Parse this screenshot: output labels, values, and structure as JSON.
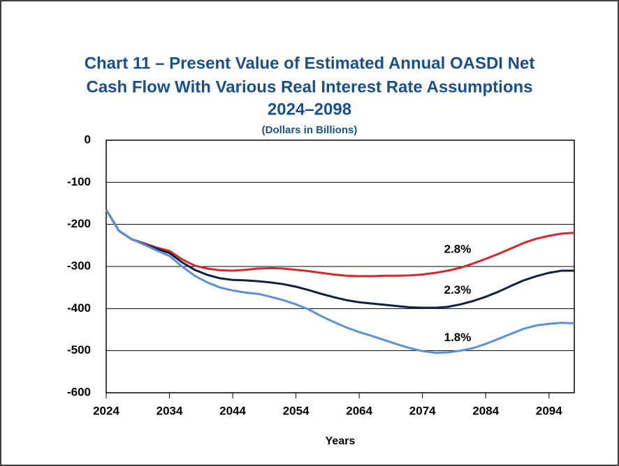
{
  "chart_data": {
    "type": "line",
    "title": [
      "Chart 11 – Present Value of Estimated Annual OASDI Net",
      "Cash Flow With Various Real Interest Rate Assumptions",
      "2024–2098"
    ],
    "subtitle": "(Dollars in Billions)",
    "x_label": "Years",
    "x": [
      2024,
      2026,
      2028,
      2030,
      2032,
      2034,
      2036,
      2038,
      2040,
      2042,
      2044,
      2046,
      2048,
      2050,
      2052,
      2054,
      2056,
      2058,
      2060,
      2062,
      2064,
      2066,
      2068,
      2070,
      2072,
      2074,
      2076,
      2078,
      2080,
      2082,
      2084,
      2086,
      2088,
      2090,
      2092,
      2094,
      2096,
      2098
    ],
    "series": [
      {
        "name": "2.8%",
        "color": "#d9262b",
        "values": [
          -165,
          -215,
          -235,
          -245,
          -255,
          -263,
          -283,
          -298,
          -305,
          -309,
          -310,
          -308,
          -305,
          -304,
          -305,
          -308,
          -311,
          -315,
          -319,
          -322,
          -323,
          -323,
          -322,
          -322,
          -321,
          -319,
          -315,
          -310,
          -303,
          -293,
          -282,
          -270,
          -257,
          -244,
          -234,
          -227,
          -222,
          -220
        ]
      },
      {
        "name": "2.3%",
        "color": "#0d2240",
        "values": [
          -165,
          -215,
          -235,
          -247,
          -258,
          -268,
          -290,
          -308,
          -320,
          -328,
          -332,
          -333,
          -335,
          -338,
          -342,
          -348,
          -356,
          -365,
          -373,
          -380,
          -385,
          -388,
          -391,
          -394,
          -397,
          -398,
          -398,
          -396,
          -390,
          -382,
          -372,
          -360,
          -346,
          -333,
          -323,
          -315,
          -310,
          -310
        ]
      },
      {
        "name": "1.8%",
        "color": "#5b8fd6",
        "values": [
          -165,
          -215,
          -235,
          -248,
          -262,
          -275,
          -300,
          -322,
          -338,
          -350,
          -357,
          -362,
          -365,
          -372,
          -380,
          -390,
          -402,
          -418,
          -432,
          -445,
          -456,
          -465,
          -475,
          -485,
          -494,
          -501,
          -505,
          -504,
          -500,
          -494,
          -484,
          -472,
          -460,
          -448,
          -440,
          -436,
          -434,
          -435
        ]
      }
    ],
    "xlim": [
      2024,
      2098
    ],
    "xticks": [
      2024,
      2034,
      2044,
      2054,
      2064,
      2074,
      2084,
      2094
    ],
    "ylim": [
      -600,
      0
    ],
    "yticks": [
      -600,
      -500,
      -400,
      -300,
      -200,
      -100,
      0
    ],
    "grid": true
  }
}
